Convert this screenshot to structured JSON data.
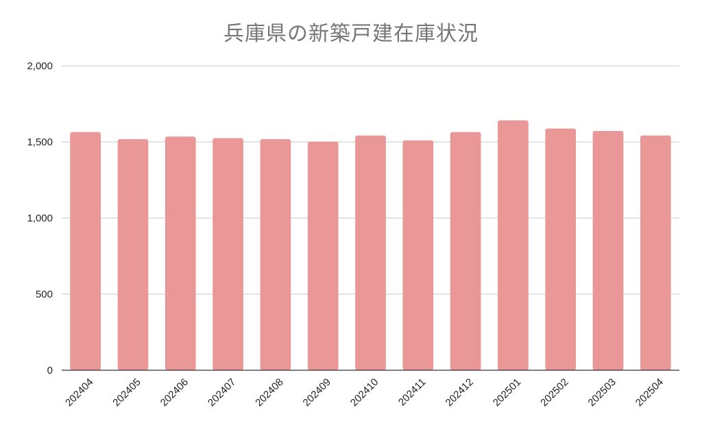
{
  "chart_data": {
    "type": "bar",
    "title": "兵庫県の新築戸建在庫状況",
    "xlabel": "",
    "ylabel": "",
    "categories": [
      "202404",
      "202405",
      "202406",
      "202407",
      "202408",
      "202409",
      "202410",
      "202411",
      "202412",
      "202501",
      "202502",
      "202503",
      "202504"
    ],
    "series": [
      {
        "values": [
          1565,
          1518,
          1535,
          1525,
          1518,
          1502,
          1542,
          1510,
          1565,
          1642,
          1588,
          1572,
          1542
        ]
      }
    ],
    "ylim": [
      0,
      2000
    ],
    "yticks": [
      0,
      500,
      1000,
      1500,
      2000
    ],
    "ytick_labels": [
      "0",
      "500",
      "1,000",
      "1,500",
      "2,000"
    ],
    "grid": true,
    "legend": "none",
    "bar_color": "#e99797",
    "grid_color": "#c8c8c8",
    "axis_color": "#333333",
    "title_color": "#757575"
  }
}
